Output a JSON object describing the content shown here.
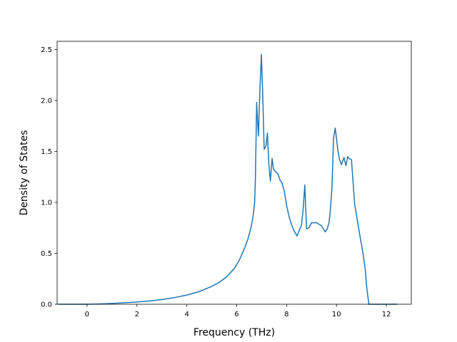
{
  "chart_data": {
    "type": "line",
    "title": "",
    "xlabel": "Frequency (THz)",
    "ylabel": "Density of States",
    "xlim": [
      -1.2,
      13
    ],
    "ylim": [
      0,
      2.58
    ],
    "xticks": [
      0,
      2,
      4,
      6,
      8,
      10,
      12
    ],
    "yticks": [
      0.0,
      0.5,
      1.0,
      1.5,
      2.0,
      2.5
    ],
    "xtick_labels": [
      "0",
      "2",
      "4",
      "6",
      "8",
      "10",
      "12"
    ],
    "ytick_labels": [
      "0.0",
      "0.5",
      "1.0",
      "1.5",
      "2.0",
      "2.5"
    ],
    "grid": false,
    "legend": "none",
    "colors": {
      "line": "#1f77b4"
    },
    "series": [
      {
        "x": [
          -1.15,
          -0.5,
          0,
          0.5,
          1,
          1.5,
          2,
          2.5,
          3,
          3.5,
          4,
          4.5,
          5,
          5.3,
          5.6,
          5.9,
          6.1,
          6.3,
          6.45,
          6.55,
          6.65,
          6.72,
          6.75,
          6.8,
          6.87,
          6.93,
          6.99,
          7.05,
          7.1,
          7.17,
          7.23,
          7.29,
          7.35,
          7.42,
          7.47,
          7.55,
          7.65,
          7.75,
          7.8,
          7.9,
          8.0,
          8.1,
          8.2,
          8.3,
          8.42,
          8.5,
          8.6,
          8.67,
          8.73,
          8.8,
          8.9,
          9.0,
          9.2,
          9.4,
          9.55,
          9.63,
          9.7,
          9.75,
          9.82,
          9.88,
          9.95,
          10.0,
          10.05,
          10.12,
          10.2,
          10.3,
          10.38,
          10.45,
          10.5,
          10.6,
          10.65,
          10.73,
          10.8,
          10.92,
          11.05,
          11.15,
          11.22,
          11.3,
          11.7,
          12.45
        ],
        "y": [
          0.0,
          0.0,
          0.0,
          0.003,
          0.008,
          0.015,
          0.022,
          0.032,
          0.046,
          0.065,
          0.09,
          0.125,
          0.175,
          0.215,
          0.27,
          0.35,
          0.43,
          0.54,
          0.64,
          0.73,
          0.85,
          1.0,
          1.25,
          1.98,
          1.65,
          2.1,
          2.45,
          2.0,
          1.52,
          1.55,
          1.68,
          1.37,
          1.21,
          1.43,
          1.33,
          1.3,
          1.28,
          1.21,
          1.2,
          1.12,
          0.97,
          0.86,
          0.78,
          0.72,
          0.67,
          0.72,
          0.78,
          0.95,
          1.17,
          0.74,
          0.75,
          0.8,
          0.8,
          0.77,
          0.71,
          0.74,
          0.8,
          0.91,
          1.15,
          1.62,
          1.73,
          1.63,
          1.52,
          1.42,
          1.37,
          1.44,
          1.36,
          1.45,
          1.43,
          1.42,
          1.25,
          0.98,
          0.88,
          0.7,
          0.52,
          0.35,
          0.15,
          0.0,
          0.0,
          0.0
        ]
      }
    ]
  }
}
